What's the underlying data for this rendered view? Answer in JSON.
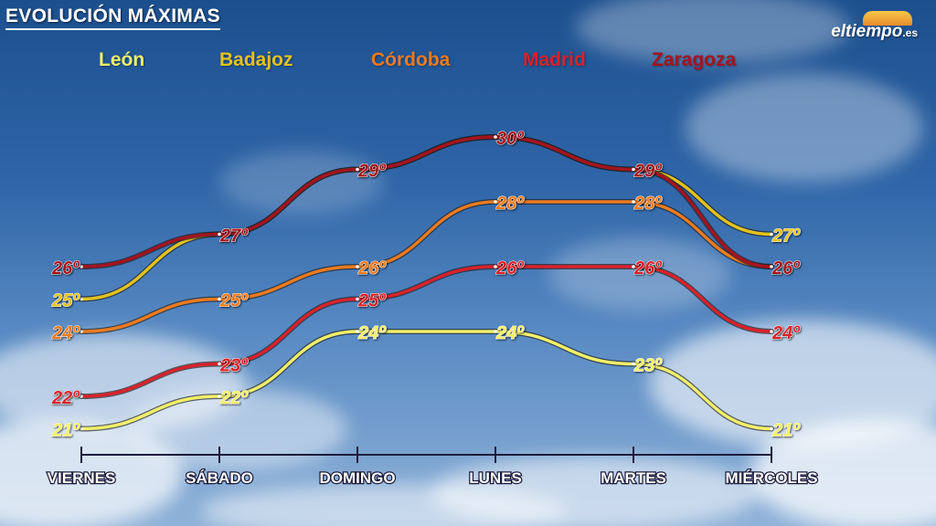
{
  "title": "EVOLUCIÓN MÁXIMAS",
  "logo": {
    "name": "eltiempo",
    "suffix": ".es"
  },
  "colors": {
    "León": "#f2ef6a",
    "Badajoz": "#e3c21f",
    "Córdoba": "#ec7a1f",
    "Madrid": "#d8222b",
    "Zaragoza": "#a3141f",
    "axis": "#1d1d3a",
    "label_text": "#ffffff"
  },
  "chart_data": {
    "type": "line",
    "title": "EVOLUCIÓN MÁXIMAS",
    "xlabel": "",
    "ylabel": "",
    "categories": [
      "VIERNES",
      "SÁBADO",
      "DOMINGO",
      "LUNES",
      "MARTES",
      "MIÉRCOLES"
    ],
    "unit": "º",
    "grid": false,
    "legend_position": "top",
    "series": [
      {
        "name": "León",
        "values": [
          21,
          22,
          24,
          24,
          23,
          21
        ]
      },
      {
        "name": "Badajoz",
        "values": [
          25,
          27,
          29,
          30,
          29,
          27
        ]
      },
      {
        "name": "Córdoba",
        "values": [
          24,
          25,
          26,
          28,
          28,
          26
        ]
      },
      {
        "name": "Madrid",
        "values": [
          22,
          23,
          25,
          26,
          26,
          24
        ]
      },
      {
        "name": "Zaragoza",
        "values": [
          26,
          27,
          29,
          30,
          29,
          26
        ]
      }
    ],
    "value_labels": {
      "León": [
        "21º",
        "22º",
        "24º",
        "24º",
        "23º",
        "21º"
      ],
      "Badajoz": [
        "25º",
        "",
        "",
        "",
        "",
        "27º"
      ],
      "Córdoba": [
        "24º",
        "25º",
        "26º",
        "28º",
        "28º",
        ""
      ],
      "Madrid": [
        "22º",
        "23º",
        "25º",
        "26º",
        "26º",
        "24º"
      ],
      "Zaragoza": [
        "26º",
        "27º",
        "29º",
        "30º",
        "29º",
        "26º"
      ]
    }
  }
}
